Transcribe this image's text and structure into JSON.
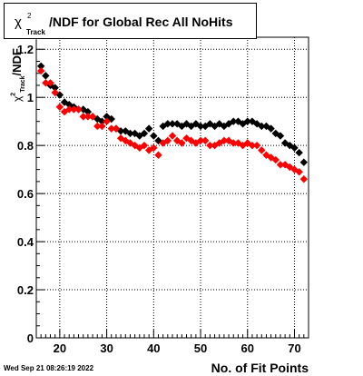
{
  "title": {
    "symbol": "χ",
    "sup": "2",
    "sub": "Track",
    "text": "/NDF for Global Rec All NoHits"
  },
  "y_title": {
    "symbol": "χ",
    "sup": "2",
    "sub": "Track",
    "suffix": "/NDF"
  },
  "x_title": "No. of Fit Points",
  "timestamp": "Wed Sep 21 08:26:19 2022",
  "chart_data": {
    "type": "scatter",
    "xlabel": "No. of Fit Points",
    "ylabel": "χ2 Track /NDF",
    "xlim": [
      15,
      73
    ],
    "ylim": [
      0,
      1.25
    ],
    "x_ticks": [
      20,
      30,
      40,
      50,
      60,
      70
    ],
    "y_ticks": [
      0,
      0.2,
      0.4,
      0.6,
      0.8,
      1,
      1.2
    ],
    "y_tick_labels": [
      "0",
      "0.2",
      "0.4",
      "0.6",
      "0.8",
      "1",
      "1.2"
    ],
    "grid": true,
    "colors": {
      "black_series": "#000000",
      "red_series": "#ff0000"
    },
    "series": [
      {
        "color": "#000000",
        "x": [
          16,
          17,
          18,
          19,
          20,
          21,
          22,
          23,
          24,
          25,
          26,
          27,
          28,
          29,
          30,
          31,
          32,
          33,
          34,
          35,
          36,
          37,
          38,
          39,
          40,
          41,
          42,
          43,
          44,
          45,
          46,
          47,
          48,
          49,
          50,
          51,
          52,
          53,
          54,
          55,
          56,
          57,
          58,
          59,
          60,
          61,
          62,
          63,
          64,
          65,
          66,
          67,
          68,
          69,
          70,
          71,
          72
        ],
        "values": [
          1.13,
          1.09,
          1.05,
          1.04,
          1.01,
          0.98,
          0.97,
          0.96,
          0.95,
          0.95,
          0.94,
          0.92,
          0.91,
          0.9,
          0.92,
          0.91,
          0.87,
          0.86,
          0.86,
          0.85,
          0.85,
          0.84,
          0.85,
          0.87,
          0.84,
          0.82,
          0.88,
          0.89,
          0.89,
          0.89,
          0.88,
          0.89,
          0.88,
          0.89,
          0.88,
          0.88,
          0.89,
          0.88,
          0.89,
          0.88,
          0.89,
          0.9,
          0.9,
          0.89,
          0.9,
          0.9,
          0.89,
          0.88,
          0.88,
          0.87,
          0.85,
          0.84,
          0.81,
          0.8,
          0.79,
          0.77,
          0.73
        ]
      },
      {
        "color": "#ff0000",
        "x": [
          16,
          17,
          18,
          19,
          20,
          21,
          22,
          23,
          24,
          25,
          26,
          27,
          28,
          29,
          30,
          31,
          32,
          33,
          34,
          35,
          36,
          37,
          38,
          39,
          40,
          41,
          42,
          43,
          44,
          45,
          46,
          47,
          48,
          49,
          50,
          51,
          52,
          53,
          54,
          55,
          56,
          57,
          58,
          59,
          60,
          61,
          62,
          63,
          64,
          65,
          66,
          67,
          68,
          69,
          70,
          71,
          72
        ],
        "values": [
          1.11,
          1.06,
          1.06,
          1.02,
          0.96,
          0.94,
          0.95,
          0.95,
          0.95,
          0.92,
          0.92,
          0.92,
          0.88,
          0.88,
          0.9,
          0.87,
          0.87,
          0.83,
          0.82,
          0.81,
          0.8,
          0.79,
          0.8,
          0.78,
          0.79,
          0.76,
          0.81,
          0.82,
          0.84,
          0.82,
          0.81,
          0.83,
          0.82,
          0.81,
          0.82,
          0.82,
          0.8,
          0.8,
          0.81,
          0.82,
          0.82,
          0.81,
          0.81,
          0.8,
          0.81,
          0.8,
          0.8,
          0.78,
          0.76,
          0.75,
          0.74,
          0.72,
          0.72,
          0.71,
          0.7,
          0.69,
          0.66
        ]
      }
    ]
  }
}
